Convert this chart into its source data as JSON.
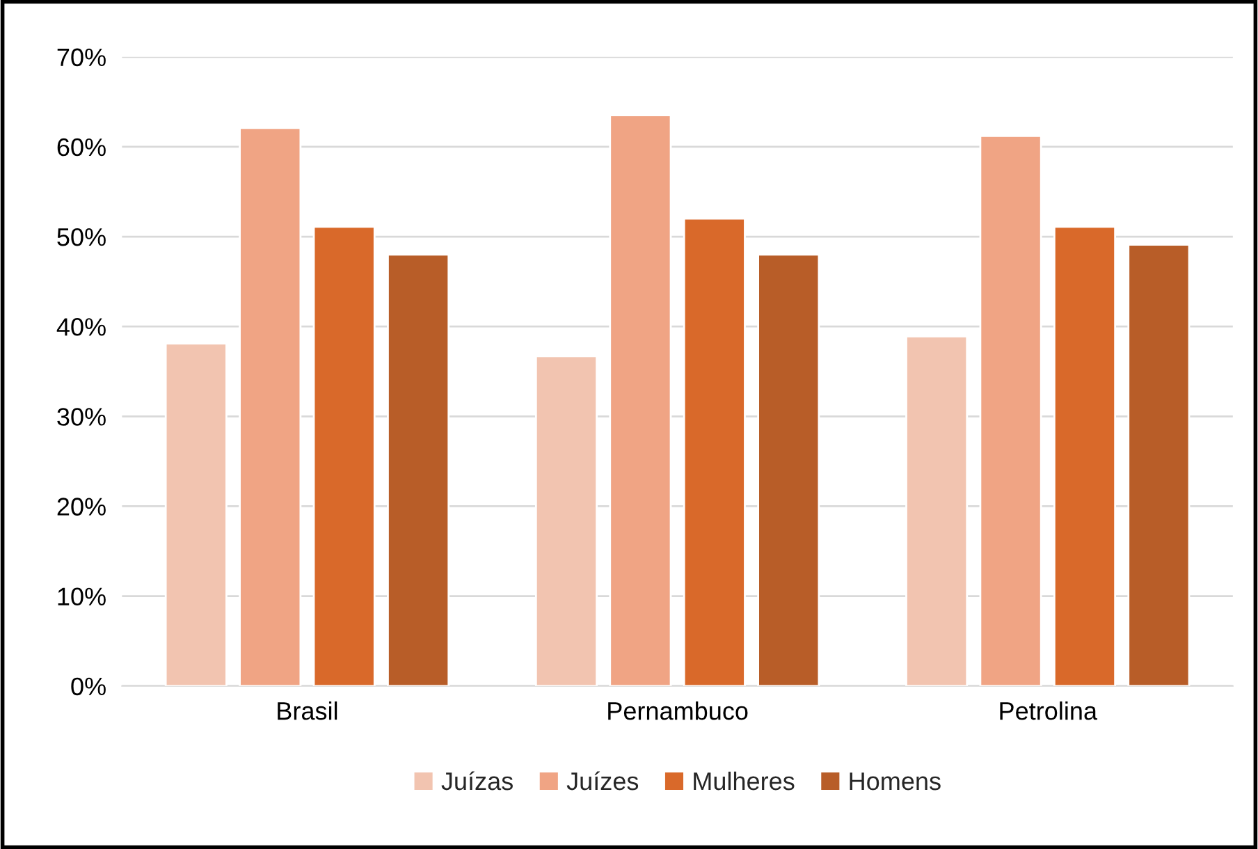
{
  "chart_data": {
    "type": "bar",
    "categories": [
      "Brasil",
      "Pernambuco",
      "Petrolina"
    ],
    "series": [
      {
        "name": "Juízas",
        "color": "#f2c4b0",
        "values": [
          38.1,
          36.7,
          38.9
        ]
      },
      {
        "name": "Juízes",
        "color": "#f0a484",
        "values": [
          62.1,
          63.5,
          61.2
        ]
      },
      {
        "name": "Mulheres",
        "color": "#d9692a",
        "values": [
          51.1,
          52.0,
          51.1
        ]
      },
      {
        "name": "Homens",
        "color": "#b85d28",
        "values": [
          48.0,
          48.0,
          49.1
        ]
      }
    ],
    "ylim": [
      0,
      70
    ],
    "yticks": [
      {
        "value": 0,
        "label": "0%"
      },
      {
        "value": 10,
        "label": "10%"
      },
      {
        "value": 20,
        "label": "20%"
      },
      {
        "value": 30,
        "label": "30%"
      },
      {
        "value": 40,
        "label": "40%"
      },
      {
        "value": 50,
        "label": "50%"
      },
      {
        "value": 60,
        "label": "60%"
      },
      {
        "value": 70,
        "label": "70%"
      }
    ],
    "grid": "y",
    "legend": "bottom"
  }
}
